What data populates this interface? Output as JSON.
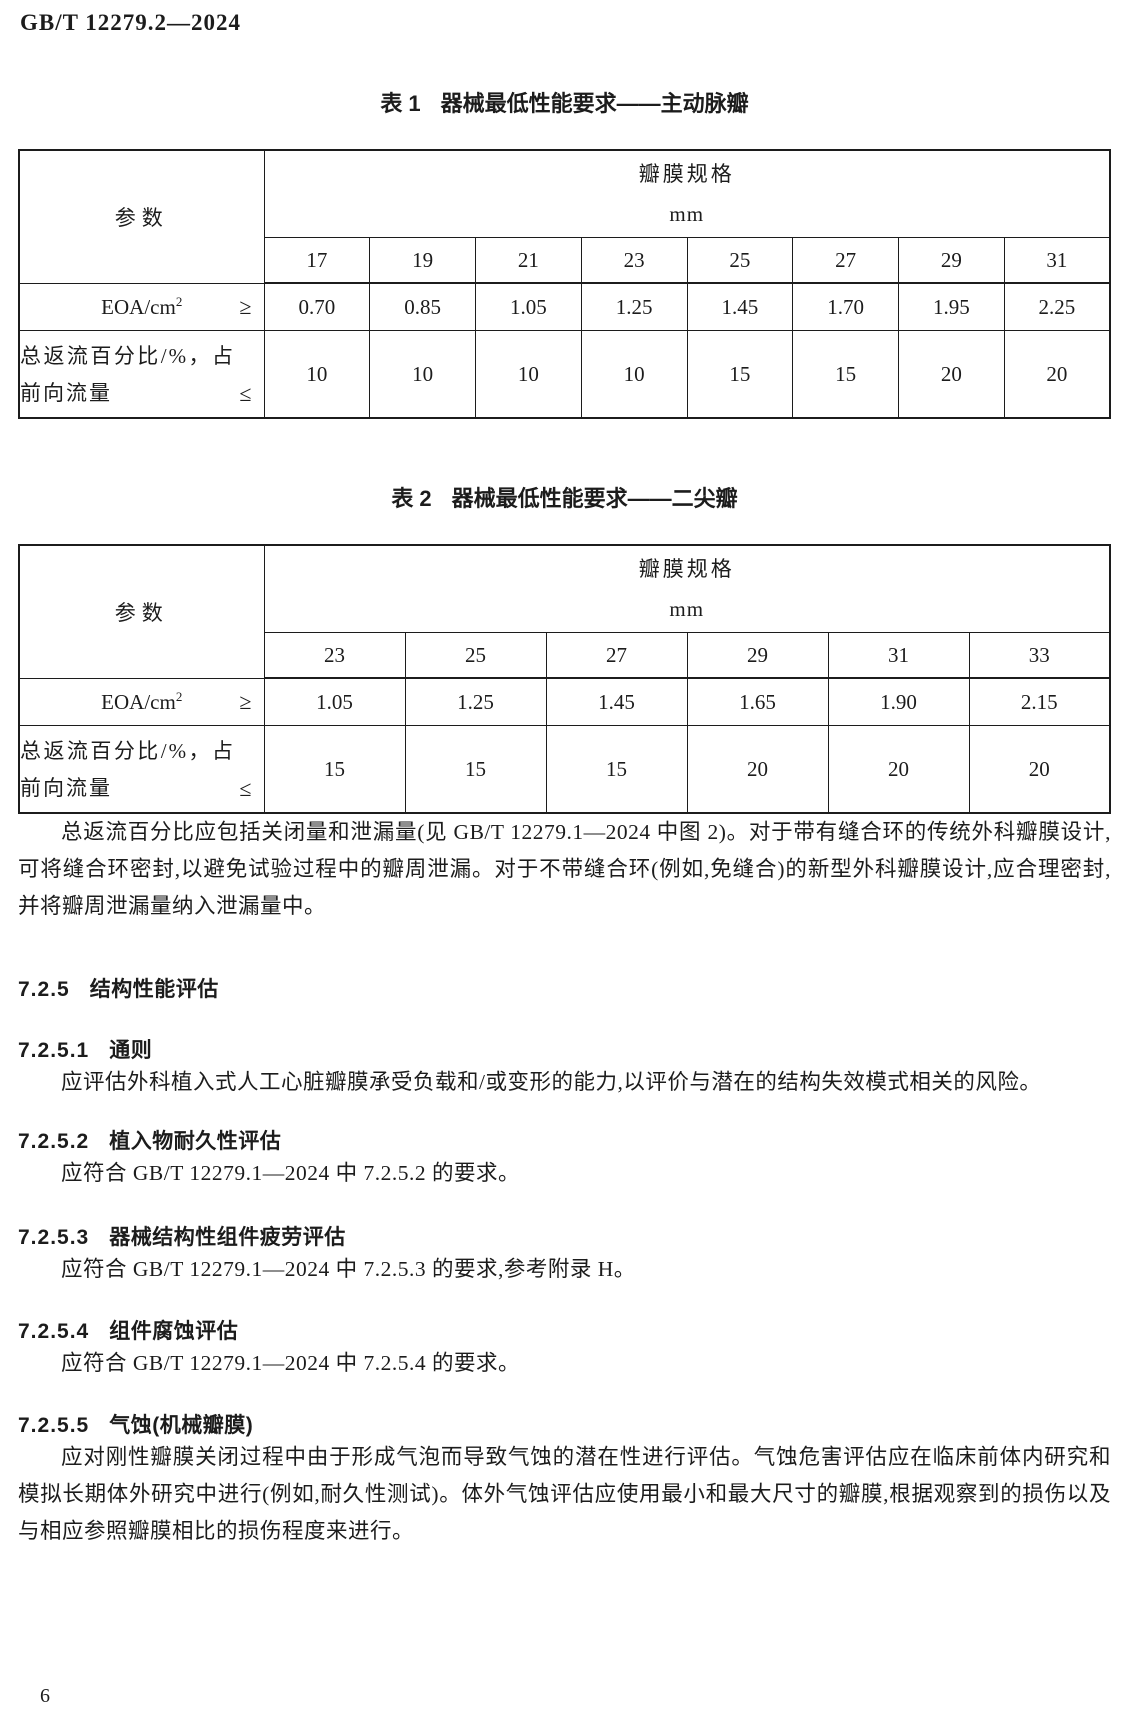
{
  "doc": {
    "number": "GB/T 12279.2—2024",
    "page_number": "6"
  },
  "table1": {
    "caption_label": "表 1",
    "caption_title": "器械最低性能要求——主动脉瓣",
    "param_header": "参数",
    "spec_header": "瓣膜规格",
    "spec_unit": "mm",
    "sizes": [
      "17",
      "19",
      "21",
      "23",
      "25",
      "27",
      "29",
      "31"
    ],
    "rows": [
      {
        "label": "EOA/cm",
        "label_sup": "2",
        "operator": "≥",
        "values": [
          "0.70",
          "0.85",
          "1.05",
          "1.25",
          "1.45",
          "1.70",
          "1.95",
          "2.25"
        ]
      },
      {
        "label": "总返流百分比/%，占前向流量",
        "operator": "≤",
        "values": [
          "10",
          "10",
          "10",
          "10",
          "15",
          "15",
          "20",
          "20"
        ]
      }
    ]
  },
  "table2": {
    "caption_label": "表 2",
    "caption_title": "器械最低性能要求——二尖瓣",
    "param_header": "参数",
    "spec_header": "瓣膜规格",
    "spec_unit": "mm",
    "sizes": [
      "23",
      "25",
      "27",
      "29",
      "31",
      "33"
    ],
    "rows": [
      {
        "label": "EOA/cm",
        "label_sup": "2",
        "operator": "≥",
        "values": [
          "1.05",
          "1.25",
          "1.45",
          "1.65",
          "1.90",
          "2.15"
        ]
      },
      {
        "label": "总返流百分比/%，占前向流量",
        "operator": "≤",
        "values": [
          "15",
          "15",
          "15",
          "20",
          "20",
          "20"
        ]
      }
    ]
  },
  "paragraphs": {
    "regurgitation_note": "总返流百分比应包括关闭量和泄漏量(见 GB/T 12279.1—2024 中图 2)。对于带有缝合环的传统外科瓣膜设计,可将缝合环密封,以避免试验过程中的瓣周泄漏。对于不带缝合环(例如,免缝合)的新型外科瓣膜设计,应合理密封,并将瓣周泄漏量纳入泄漏量中。"
  },
  "sections": {
    "s725": {
      "num": "7.2.5",
      "title": "结构性能评估"
    },
    "s7251": {
      "num": "7.2.5.1",
      "title": "通则",
      "text": "应评估外科植入式人工心脏瓣膜承受负载和/或变形的能力,以评价与潜在的结构失效模式相关的风险。"
    },
    "s7252": {
      "num": "7.2.5.2",
      "title": "植入物耐久性评估",
      "text": "应符合 GB/T 12279.1—2024 中 7.2.5.2 的要求。"
    },
    "s7253": {
      "num": "7.2.5.3",
      "title": "器械结构性组件疲劳评估",
      "text": "应符合 GB/T 12279.1—2024 中 7.2.5.3 的要求,参考附录 H。"
    },
    "s7254": {
      "num": "7.2.5.4",
      "title": "组件腐蚀评估",
      "text": "应符合 GB/T 12279.1—2024 中 7.2.5.4 的要求。"
    },
    "s7255": {
      "num": "7.2.5.5",
      "title": "气蚀(机械瓣膜)",
      "text": "应对刚性瓣膜关闭过程中由于形成气泡而导致气蚀的潜在性进行评估。气蚀危害评估应在临床前体内研究和模拟长期体外研究中进行(例如,耐久性测试)。体外气蚀评估应使用最小和最大尺寸的瓣膜,根据观察到的损伤以及与相应参照瓣膜相比的损伤程度来进行。"
    }
  }
}
